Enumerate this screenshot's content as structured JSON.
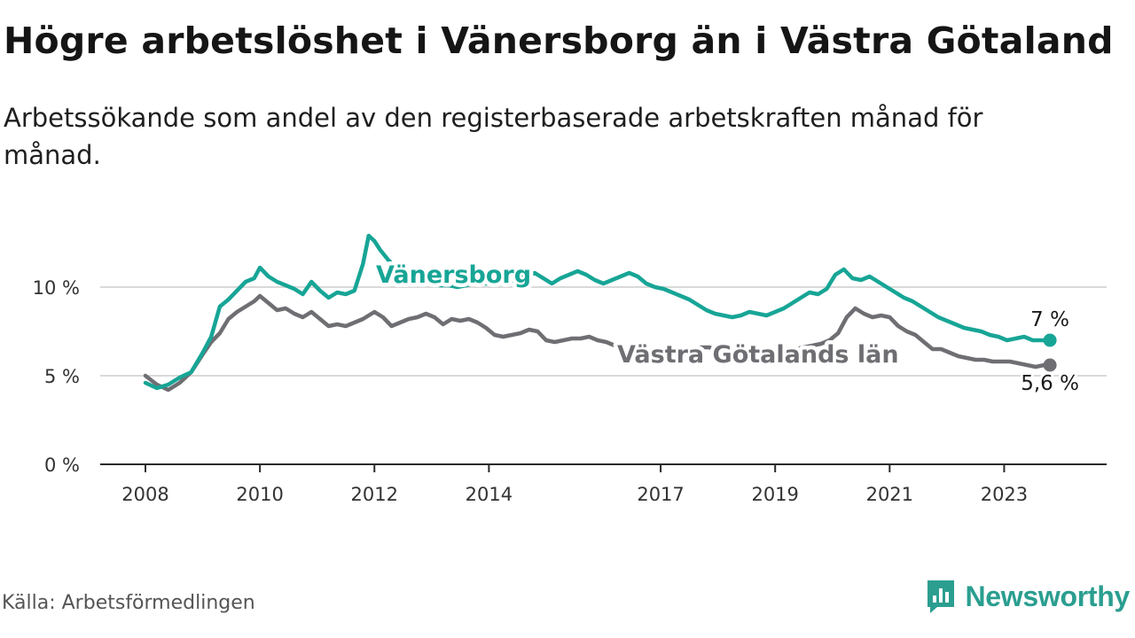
{
  "title": "Högre arbetslöshet i Vänersborg än i Västra Götaland",
  "subtitle": "Arbetssökande som andel av den registerbaserade arbetskraften månad för månad.",
  "source": "Källa: Arbetsförmedlingen",
  "brand": {
    "name": "Newsworthy",
    "icon": "newsworthy-logo-icon",
    "color": "#2b9e90"
  },
  "chart_data": {
    "type": "line",
    "title": "Högre arbetslöshet i Vänersborg än i Västra Götaland",
    "xlabel": "",
    "ylabel": "",
    "xlim": [
      2008.0,
      2024.0
    ],
    "ylim": [
      0,
      12
    ],
    "y_ticks": [
      0,
      5,
      10
    ],
    "y_tick_labels": [
      "0 %",
      "5 %",
      "10 %"
    ],
    "x_ticks": [
      2008,
      2010,
      2012,
      2014,
      2017,
      2019,
      2021,
      2023
    ],
    "x_tick_labels": [
      "2008",
      "2010",
      "2012",
      "2014",
      "2017",
      "2019",
      "2021",
      "2023"
    ],
    "grid": true,
    "series": [
      {
        "name": "Vänersborg",
        "color": "#17a596",
        "end_label": "7 %",
        "x": [
          2008.0,
          2008.2,
          2008.4,
          2008.6,
          2008.8,
          2009.0,
          2009.15,
          2009.3,
          2009.45,
          2009.6,
          2009.75,
          2009.9,
          2010.0,
          2010.15,
          2010.3,
          2010.45,
          2010.6,
          2010.75,
          2010.9,
          2011.05,
          2011.2,
          2011.35,
          2011.5,
          2011.65,
          2011.8,
          2011.9,
          2012.0,
          2012.1,
          2012.25,
          2012.4,
          2012.55,
          2012.7,
          2012.85,
          2013.0,
          2013.15,
          2013.3,
          2013.45,
          2013.6,
          2013.75,
          2013.9,
          2014.05,
          2014.2,
          2014.35,
          2014.5,
          2014.65,
          2014.8,
          2014.95,
          2015.1,
          2015.25,
          2015.4,
          2015.55,
          2015.7,
          2015.85,
          2016.0,
          2016.15,
          2016.3,
          2016.45,
          2016.6,
          2016.75,
          2016.9,
          2017.05,
          2017.2,
          2017.35,
          2017.5,
          2017.65,
          2017.8,
          2017.95,
          2018.1,
          2018.25,
          2018.4,
          2018.55,
          2018.7,
          2018.85,
          2019.0,
          2019.15,
          2019.3,
          2019.45,
          2019.6,
          2019.75,
          2019.9,
          2020.05,
          2020.2,
          2020.35,
          2020.5,
          2020.65,
          2020.8,
          2020.95,
          2021.1,
          2021.25,
          2021.4,
          2021.55,
          2021.7,
          2021.85,
          2022.0,
          2022.15,
          2022.3,
          2022.45,
          2022.6,
          2022.75,
          2022.9,
          2023.05,
          2023.2,
          2023.35,
          2023.5,
          2023.65,
          2023.8
        ],
        "values": [
          4.6,
          4.3,
          4.5,
          4.9,
          5.2,
          6.3,
          7.2,
          8.9,
          9.3,
          9.8,
          10.3,
          10.5,
          11.1,
          10.6,
          10.3,
          10.1,
          9.9,
          9.6,
          10.3,
          9.8,
          9.4,
          9.7,
          9.6,
          9.8,
          11.3,
          12.9,
          12.6,
          12.1,
          11.5,
          11.0,
          10.7,
          10.5,
          10.3,
          10.2,
          10.1,
          10.1,
          10.0,
          10.1,
          10.2,
          10.2,
          10.2,
          10.2,
          10.3,
          10.4,
          10.6,
          10.8,
          10.5,
          10.2,
          10.5,
          10.7,
          10.9,
          10.7,
          10.4,
          10.2,
          10.4,
          10.6,
          10.8,
          10.6,
          10.2,
          10.0,
          9.9,
          9.7,
          9.5,
          9.3,
          9.0,
          8.7,
          8.5,
          8.4,
          8.3,
          8.4,
          8.6,
          8.5,
          8.4,
          8.6,
          8.8,
          9.1,
          9.4,
          9.7,
          9.6,
          9.9,
          10.7,
          11.0,
          10.5,
          10.4,
          10.6,
          10.3,
          10.0,
          9.7,
          9.4,
          9.2,
          8.9,
          8.6,
          8.3,
          8.1,
          7.9,
          7.7,
          7.6,
          7.5,
          7.3,
          7.2,
          7.0,
          7.1,
          7.2,
          7.0,
          7.0,
          7.0
        ]
      },
      {
        "name": "Västra Götalands län",
        "color": "#6e6e73",
        "end_label": "5,6 %",
        "x": [
          2008.0,
          2008.2,
          2008.4,
          2008.6,
          2008.8,
          2009.0,
          2009.15,
          2009.3,
          2009.45,
          2009.6,
          2009.75,
          2009.9,
          2010.0,
          2010.15,
          2010.3,
          2010.45,
          2010.6,
          2010.75,
          2010.9,
          2011.05,
          2011.2,
          2011.35,
          2011.5,
          2011.65,
          2011.8,
          2011.9,
          2012.0,
          2012.15,
          2012.3,
          2012.45,
          2012.6,
          2012.75,
          2012.9,
          2013.05,
          2013.2,
          2013.35,
          2013.5,
          2013.65,
          2013.8,
          2013.95,
          2014.1,
          2014.25,
          2014.4,
          2014.55,
          2014.7,
          2014.85,
          2015.0,
          2015.15,
          2015.3,
          2015.45,
          2015.6,
          2015.75,
          2015.9,
          2016.05,
          2016.2,
          2016.35,
          2016.5,
          2016.65,
          2016.8,
          2016.95,
          2017.1,
          2017.25,
          2017.4,
          2017.55,
          2017.7,
          2017.85,
          2018.0,
          2018.15,
          2018.3,
          2018.45,
          2018.6,
          2018.75,
          2018.9,
          2019.05,
          2019.2,
          2019.35,
          2019.5,
          2019.65,
          2019.8,
          2019.95,
          2020.1,
          2020.25,
          2020.4,
          2020.55,
          2020.7,
          2020.85,
          2021.0,
          2021.15,
          2021.3,
          2021.45,
          2021.6,
          2021.75,
          2021.9,
          2022.05,
          2022.2,
          2022.35,
          2022.5,
          2022.65,
          2022.8,
          2022.95,
          2023.1,
          2023.25,
          2023.4,
          2023.55,
          2023.7,
          2023.8
        ],
        "values": [
          5.0,
          4.5,
          4.2,
          4.6,
          5.2,
          6.2,
          6.9,
          7.4,
          8.2,
          8.6,
          8.9,
          9.2,
          9.5,
          9.1,
          8.7,
          8.8,
          8.5,
          8.3,
          8.6,
          8.2,
          7.8,
          7.9,
          7.8,
          8.0,
          8.2,
          8.4,
          8.6,
          8.3,
          7.8,
          8.0,
          8.2,
          8.3,
          8.5,
          8.3,
          7.9,
          8.2,
          8.1,
          8.2,
          8.0,
          7.7,
          7.3,
          7.2,
          7.3,
          7.4,
          7.6,
          7.5,
          7.0,
          6.9,
          7.0,
          7.1,
          7.1,
          7.2,
          7.0,
          6.9,
          6.7,
          6.6,
          6.5,
          6.4,
          6.3,
          6.3,
          6.4,
          6.4,
          6.5,
          6.5,
          6.6,
          6.6,
          6.4,
          6.3,
          6.2,
          6.1,
          6.0,
          6.2,
          6.3,
          6.3,
          6.4,
          6.5,
          6.6,
          6.7,
          6.8,
          7.0,
          7.4,
          8.3,
          8.8,
          8.5,
          8.3,
          8.4,
          8.3,
          7.8,
          7.5,
          7.3,
          6.9,
          6.5,
          6.5,
          6.3,
          6.1,
          6.0,
          5.9,
          5.9,
          5.8,
          5.8,
          5.8,
          5.7,
          5.6,
          5.5,
          5.6,
          5.6
        ]
      }
    ]
  }
}
